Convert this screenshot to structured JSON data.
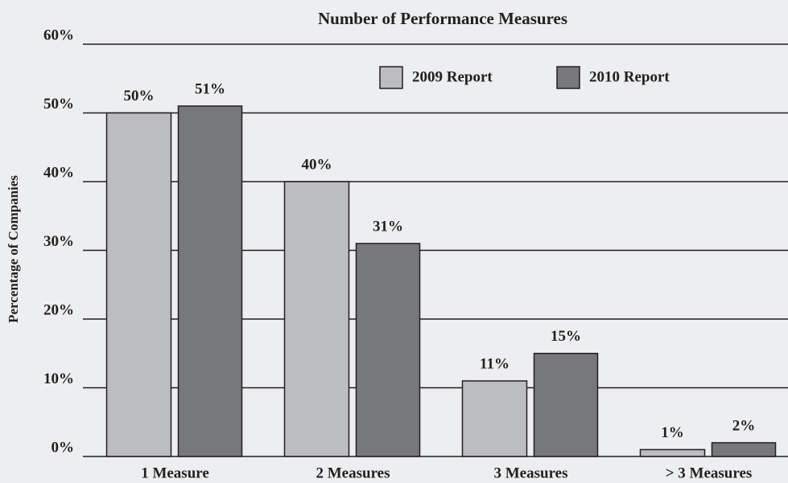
{
  "chart_data": {
    "type": "bar",
    "title": "Number of Performance Measures",
    "y_label": "Percentage of Companies",
    "categories": [
      "1 Measure",
      "2 Measures",
      "3 Measures",
      "> 3 Measures"
    ],
    "series": [
      {
        "name": "2009 Report",
        "color": "#bcbdc0",
        "values": [
          50,
          40,
          11,
          1
        ],
        "value_labels": [
          "50%",
          "40%",
          "11%",
          "1%"
        ]
      },
      {
        "name": "2010 Report",
        "color": "#77787b",
        "values": [
          51,
          31,
          15,
          2
        ],
        "value_labels": [
          "51%",
          "31%",
          "15%",
          "2%"
        ]
      }
    ],
    "ylim": [
      0,
      60
    ],
    "yticks": [
      {
        "value": 0,
        "label": "0%"
      },
      {
        "value": 10,
        "label": "10%"
      },
      {
        "value": 20,
        "label": "20%"
      },
      {
        "value": 30,
        "label": "30%"
      },
      {
        "value": 40,
        "label": "40%"
      },
      {
        "value": 50,
        "label": "50%"
      },
      {
        "value": 60,
        "label": "60%"
      }
    ],
    "grid": true
  }
}
